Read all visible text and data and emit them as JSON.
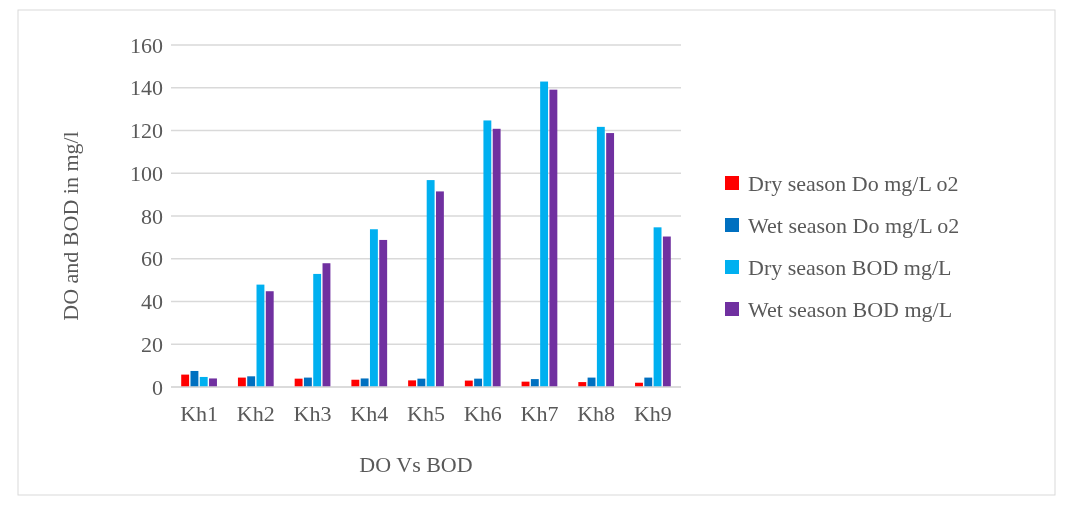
{
  "chart_data": {
    "type": "bar",
    "xlabel": "DO  Vs BOD",
    "ylabel": "DO and BOD in mg/l",
    "categories": [
      "Kh1",
      "Kh2",
      "Kh3",
      "Kh4",
      "Kh5",
      "Kh6",
      "Kh7",
      "Kh8",
      "Kh9"
    ],
    "series": [
      {
        "name": "Dry season Do mg/L o2",
        "color": "#ff0000",
        "values": [
          5.8,
          4.4,
          3.9,
          3.4,
          3.1,
          3.0,
          2.5,
          2.3,
          2.0
        ]
      },
      {
        "name": "Wet season Do mg/L o2",
        "color": "#0070c0",
        "values": [
          7.5,
          5.0,
          4.4,
          4.0,
          3.9,
          3.9,
          3.7,
          4.4,
          4.4
        ]
      },
      {
        "name": "Dry season BOD mg/L",
        "color": "#00b0f0",
        "values": [
          4.7,
          47.9,
          52.9,
          73.8,
          96.8,
          124.7,
          142.9,
          121.7,
          74.7
        ]
      },
      {
        "name": "Wet season BOD mg/L",
        "color": "#7030a0",
        "values": [
          4.0,
          44.8,
          57.9,
          68.8,
          91.5,
          120.8,
          139.1,
          118.8,
          70.4
        ]
      }
    ],
    "ylim": [
      0,
      160
    ],
    "yticks": [
      0,
      20,
      40,
      60,
      80,
      100,
      120,
      140,
      160
    ],
    "grid": "y",
    "legend": "right"
  }
}
